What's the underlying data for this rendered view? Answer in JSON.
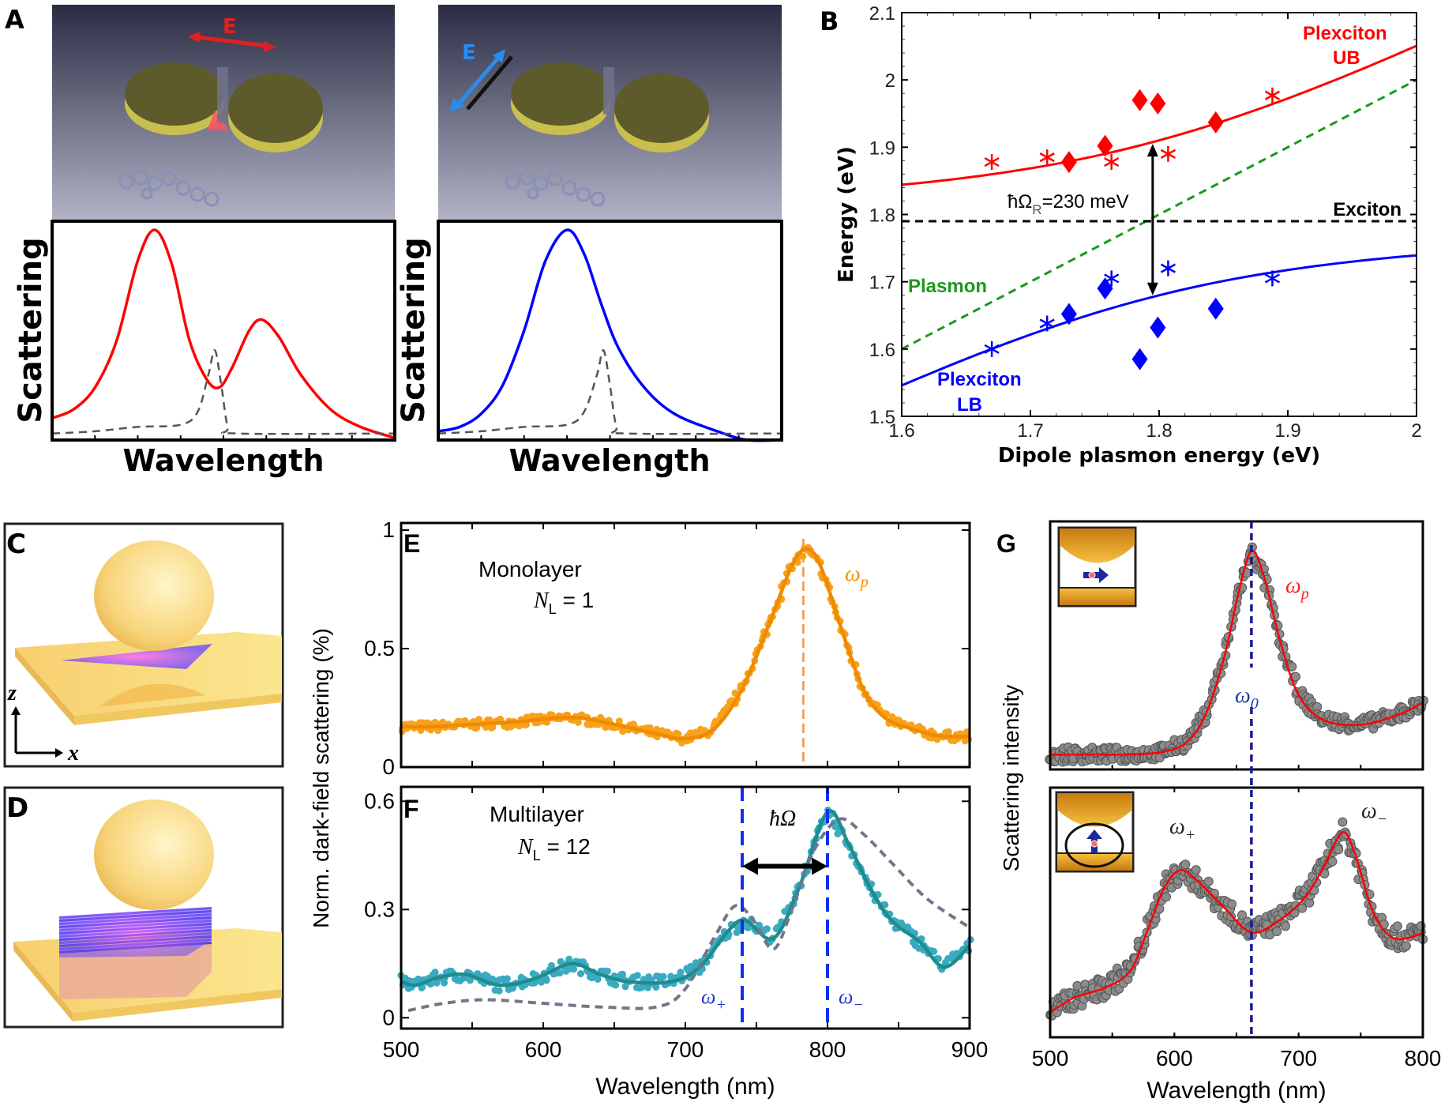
{
  "panels": {
    "A": "A",
    "B": "B",
    "C": "C",
    "D": "D",
    "E": "E",
    "F": "F",
    "G": "G"
  },
  "panel_a": {
    "field_label_left": "E",
    "field_label_right": "E",
    "xlabel": "Wavelength",
    "ylabel": "Scattering"
  },
  "panel_b": {
    "ub_label_1": "Plexciton",
    "ub_label_2": "UB",
    "lb_label_1": "Plexciton",
    "lb_label_2": "LB",
    "exciton_label": "Exciton",
    "plasmon_label": "Plasmon",
    "rabi_prefix": "ħΩ",
    "rabi_sub": "R",
    "rabi_suffix": "=230 meV"
  },
  "panel_c": {
    "axis_z": "z",
    "axis_x": "x"
  },
  "panel_ef": {
    "e_title": "Monolayer",
    "e_n_main": "N",
    "e_n_sub": "L",
    "e_n_value": " = 1",
    "e_omega": "ω",
    "e_omega_sub": "p",
    "f_title": "Multilayer",
    "f_n_main": "N",
    "f_n_sub": "L",
    "f_n_value": " = 12",
    "f_splitting": "ħΩ",
    "f_omega_plus": "ω",
    "f_omega_plus_sub": "+",
    "f_omega_minus": "ω",
    "f_omega_minus_sub": "−"
  },
  "panel_g": {
    "omega_p": "ω",
    "omega_p_sub": "p",
    "omega_0": "ω",
    "omega_0_sub": "0",
    "omega_plus": "ω",
    "omega_plus_sub": "+",
    "omega_minus": "ω",
    "omega_minus_sub": "−"
  },
  "colors": {
    "red": "#ff0000",
    "blue": "#0000ff",
    "green": "#1a9a1a",
    "orange": "#f39200",
    "teal": "#1f8c8c",
    "grey_dash": "#77738a",
    "gold": "#f4c860"
  },
  "chart_data": [
    {
      "id": "A-left",
      "type": "line",
      "xlabel": "Wavelength",
      "ylabel": "Scattering",
      "xlim": [
        0,
        8
      ],
      "ylim": [
        0,
        1
      ],
      "xticks": [
        0,
        1,
        2,
        3,
        4,
        5,
        6,
        7,
        8
      ],
      "grid": false,
      "series": [
        {
          "color": "#ff0000",
          "style": "solid",
          "points": [
            [
              0,
              0.1
            ],
            [
              0.5,
              0.14
            ],
            [
              1,
              0.24
            ],
            [
              1.5,
              0.45
            ],
            [
              2,
              0.82
            ],
            [
              2.4,
              0.96
            ],
            [
              2.8,
              0.8
            ],
            [
              3.2,
              0.46
            ],
            [
              3.6,
              0.28
            ],
            [
              3.9,
              0.24
            ],
            [
              4.2,
              0.33
            ],
            [
              4.6,
              0.5
            ],
            [
              4.9,
              0.55
            ],
            [
              5.3,
              0.47
            ],
            [
              5.8,
              0.3
            ],
            [
              6.5,
              0.14
            ],
            [
              7.2,
              0.06
            ],
            [
              8,
              0.01
            ]
          ]
        },
        {
          "color": "#555555",
          "style": "dashed",
          "points": [
            [
              0,
              0.03
            ],
            [
              1,
              0.04
            ],
            [
              2,
              0.06
            ],
            [
              3,
              0.07
            ],
            [
              3.4,
              0.13
            ],
            [
              3.65,
              0.3
            ],
            [
              3.8,
              0.41
            ],
            [
              3.95,
              0.25
            ],
            [
              4.1,
              0.06
            ],
            [
              4.3,
              0.03
            ],
            [
              8,
              0.03
            ]
          ]
        }
      ]
    },
    {
      "id": "A-right",
      "type": "line",
      "xlabel": "Wavelength",
      "ylabel": "Scattering",
      "xlim": [
        0,
        8
      ],
      "ylim": [
        0,
        1
      ],
      "xticks": [
        0,
        1,
        2,
        3,
        4,
        5,
        6,
        7,
        8
      ],
      "grid": false,
      "series": [
        {
          "color": "#0000ff",
          "style": "solid",
          "points": [
            [
              0,
              0.04
            ],
            [
              0.5,
              0.06
            ],
            [
              1,
              0.12
            ],
            [
              1.5,
              0.25
            ],
            [
              2,
              0.5
            ],
            [
              2.5,
              0.82
            ],
            [
              3,
              0.96
            ],
            [
              3.4,
              0.85
            ],
            [
              3.8,
              0.62
            ],
            [
              4.2,
              0.42
            ],
            [
              4.8,
              0.24
            ],
            [
              5.5,
              0.12
            ],
            [
              6.5,
              0.04
            ],
            [
              7.2,
              0.0
            ],
            [
              8,
              0.0
            ]
          ]
        },
        {
          "color": "#555555",
          "style": "dashed",
          "points": [
            [
              0,
              0.03
            ],
            [
              1,
              0.04
            ],
            [
              2,
              0.06
            ],
            [
              3,
              0.07
            ],
            [
              3.4,
              0.13
            ],
            [
              3.7,
              0.3
            ],
            [
              3.85,
              0.41
            ],
            [
              4.0,
              0.25
            ],
            [
              4.15,
              0.06
            ],
            [
              4.35,
              0.03
            ],
            [
              8,
              0.03
            ]
          ]
        }
      ]
    },
    {
      "id": "B",
      "type": "scatter",
      "xlabel": "Dipole plasmon energy (eV)",
      "ylabel": "Energy (eV)",
      "xlim": [
        1.6,
        2.0
      ],
      "ylim": [
        1.5,
        2.1
      ],
      "xticks": [
        1.6,
        1.7,
        1.8,
        1.9,
        2.0
      ],
      "xtick_labels": [
        "1.6",
        "1.7",
        "1.8",
        "1.9",
        "2"
      ],
      "yticks": [
        1.5,
        1.6,
        1.7,
        1.8,
        1.9,
        2.0,
        2.1
      ],
      "ytick_labels": [
        "1.5",
        "1.6",
        "1.7",
        "1.8",
        "1.9",
        "2",
        "2.1"
      ],
      "grid": false,
      "exciton_energy": 1.79,
      "rabi_splitting_meV": 230,
      "lines": [
        {
          "name": "Plexciton UB",
          "color": "#ff0000",
          "style": "solid",
          "model": "upper"
        },
        {
          "name": "Plexciton LB",
          "color": "#0000ff",
          "style": "solid",
          "model": "lower"
        },
        {
          "name": "Plasmon",
          "color": "#1a9a1a",
          "style": "dashed",
          "points": [
            [
              1.6,
              1.6
            ],
            [
              2.0,
              2.0
            ]
          ]
        },
        {
          "name": "Exciton",
          "color": "#000000",
          "style": "dashed",
          "points": [
            [
              1.6,
              1.79
            ],
            [
              2.0,
              1.79
            ]
          ]
        }
      ],
      "markers": [
        {
          "branch": "UB",
          "shape": "star",
          "color": "#ff0000",
          "points": [
            [
              1.67,
              1.878
            ],
            [
              1.713,
              1.885
            ],
            [
              1.763,
              1.878
            ],
            [
              1.807,
              1.89
            ],
            [
              1.888,
              1.977
            ]
          ]
        },
        {
          "branch": "UB",
          "shape": "diamond",
          "color": "#ff0000",
          "points": [
            [
              1.73,
              1.878
            ],
            [
              1.758,
              1.902
            ],
            [
              1.785,
              1.97
            ],
            [
              1.799,
              1.965
            ],
            [
              1.844,
              1.937
            ]
          ]
        },
        {
          "branch": "LB",
          "shape": "star",
          "color": "#0000ff",
          "points": [
            [
              1.67,
              1.6
            ],
            [
              1.713,
              1.638
            ],
            [
              1.763,
              1.705
            ],
            [
              1.807,
              1.72
            ],
            [
              1.888,
              1.705
            ]
          ]
        },
        {
          "branch": "LB",
          "shape": "diamond",
          "color": "#0000ff",
          "points": [
            [
              1.73,
              1.652
            ],
            [
              1.758,
              1.69
            ],
            [
              1.785,
              1.585
            ],
            [
              1.799,
              1.632
            ],
            [
              1.844,
              1.66
            ]
          ]
        }
      ]
    },
    {
      "id": "E",
      "type": "scatter",
      "ylabel": "Norm. dark-field scattering (%)",
      "xlim": [
        500,
        900
      ],
      "ylim": [
        0,
        1.03
      ],
      "yticks": [
        0,
        0.5,
        1
      ],
      "ytick_labels": [
        "0",
        "0.5",
        "1"
      ],
      "omega_p_nm": 783,
      "series": [
        {
          "color": "#f08a00",
          "marker_color": "#f7a21b",
          "fit": [
            [
              500,
              0.17
            ],
            [
              520,
              0.17
            ],
            [
              550,
              0.18
            ],
            [
              580,
              0.19
            ],
            [
              620,
              0.21
            ],
            [
              650,
              0.18
            ],
            [
              680,
              0.14
            ],
            [
              700,
              0.12
            ],
            [
              720,
              0.16
            ],
            [
              740,
              0.33
            ],
            [
              760,
              0.62
            ],
            [
              775,
              0.85
            ],
            [
              785,
              0.92
            ],
            [
              795,
              0.85
            ],
            [
              810,
              0.58
            ],
            [
              825,
              0.33
            ],
            [
              840,
              0.21
            ],
            [
              860,
              0.16
            ],
            [
              880,
              0.13
            ],
            [
              900,
              0.13
            ]
          ]
        }
      ]
    },
    {
      "id": "F",
      "type": "scatter",
      "xlabel": "Wavelength (nm)",
      "xlim": [
        500,
        900
      ],
      "ylim": [
        -0.03,
        0.64
      ],
      "xticks": [
        500,
        600,
        700,
        800,
        900
      ],
      "xtick_labels": [
        "500",
        "600",
        "700",
        "800",
        "900"
      ],
      "yticks": [
        0,
        0.3,
        0.6
      ],
      "ytick_labels": [
        "0",
        "0.3",
        "0.6"
      ],
      "omega_plus_nm": 740,
      "omega_minus_nm": 800,
      "series": [
        {
          "color": "#1f8c8c",
          "marker_color": "#3aaac2",
          "fit": [
            [
              500,
              0.1
            ],
            [
              510,
              0.09
            ],
            [
              525,
              0.11
            ],
            [
              545,
              0.12
            ],
            [
              570,
              0.09
            ],
            [
              595,
              0.11
            ],
            [
              620,
              0.15
            ],
            [
              640,
              0.12
            ],
            [
              660,
              0.1
            ],
            [
              690,
              0.1
            ],
            [
              710,
              0.14
            ],
            [
              730,
              0.24
            ],
            [
              742,
              0.27
            ],
            [
              762,
              0.22
            ],
            [
              780,
              0.36
            ],
            [
              800,
              0.57
            ],
            [
              815,
              0.48
            ],
            [
              830,
              0.36
            ],
            [
              845,
              0.27
            ],
            [
              865,
              0.21
            ],
            [
              882,
              0.14
            ],
            [
              900,
              0.2
            ]
          ]
        },
        {
          "color": "#77738a",
          "style": "dashed",
          "points": [
            [
              505,
              0.02
            ],
            [
              530,
              0.04
            ],
            [
              560,
              0.05
            ],
            [
              600,
              0.04
            ],
            [
              640,
              0.03
            ],
            [
              680,
              0.03
            ],
            [
              700,
              0.08
            ],
            [
              720,
              0.22
            ],
            [
              735,
              0.31
            ],
            [
              748,
              0.27
            ],
            [
              762,
              0.19
            ],
            [
              775,
              0.3
            ],
            [
              790,
              0.46
            ],
            [
              808,
              0.55
            ],
            [
              825,
              0.51
            ],
            [
              845,
              0.43
            ],
            [
              870,
              0.33
            ],
            [
              900,
              0.25
            ]
          ]
        }
      ]
    },
    {
      "id": "G-top",
      "type": "scatter",
      "ylabel": "Scattering intensity",
      "xlim": [
        500,
        800
      ],
      "ylim": [
        0,
        1
      ],
      "omega_0_nm": 662,
      "series": [
        {
          "color": "#ff0000",
          "marker_color": "#8c8c8c",
          "fit": [
            [
              500,
              0.06
            ],
            [
              530,
              0.06
            ],
            [
              560,
              0.06
            ],
            [
              590,
              0.07
            ],
            [
              610,
              0.11
            ],
            [
              625,
              0.22
            ],
            [
              640,
              0.45
            ],
            [
              652,
              0.72
            ],
            [
              662,
              0.88
            ],
            [
              672,
              0.78
            ],
            [
              685,
              0.52
            ],
            [
              700,
              0.3
            ],
            [
              720,
              0.2
            ],
            [
              750,
              0.18
            ],
            [
              780,
              0.22
            ],
            [
              800,
              0.27
            ]
          ]
        }
      ]
    },
    {
      "id": "G-bottom",
      "type": "scatter",
      "xlabel": "Wavelength (nm)",
      "xlim": [
        500,
        800
      ],
      "ylim": [
        0,
        1
      ],
      "xticks": [
        500,
        600,
        700,
        800
      ],
      "xtick_labels": [
        "500",
        "600",
        "700",
        "800"
      ],
      "series": [
        {
          "color": "#ff0000",
          "marker_color": "#8c8c8c",
          "fit": [
            [
              500,
              0.1
            ],
            [
              520,
              0.16
            ],
            [
              545,
              0.2
            ],
            [
              565,
              0.27
            ],
            [
              580,
              0.45
            ],
            [
              592,
              0.6
            ],
            [
              605,
              0.67
            ],
            [
              620,
              0.62
            ],
            [
              640,
              0.52
            ],
            [
              662,
              0.42
            ],
            [
              685,
              0.47
            ],
            [
              705,
              0.56
            ],
            [
              720,
              0.68
            ],
            [
              735,
              0.82
            ],
            [
              745,
              0.74
            ],
            [
              760,
              0.5
            ],
            [
              775,
              0.4
            ],
            [
              790,
              0.4
            ],
            [
              800,
              0.42
            ]
          ]
        }
      ]
    }
  ]
}
